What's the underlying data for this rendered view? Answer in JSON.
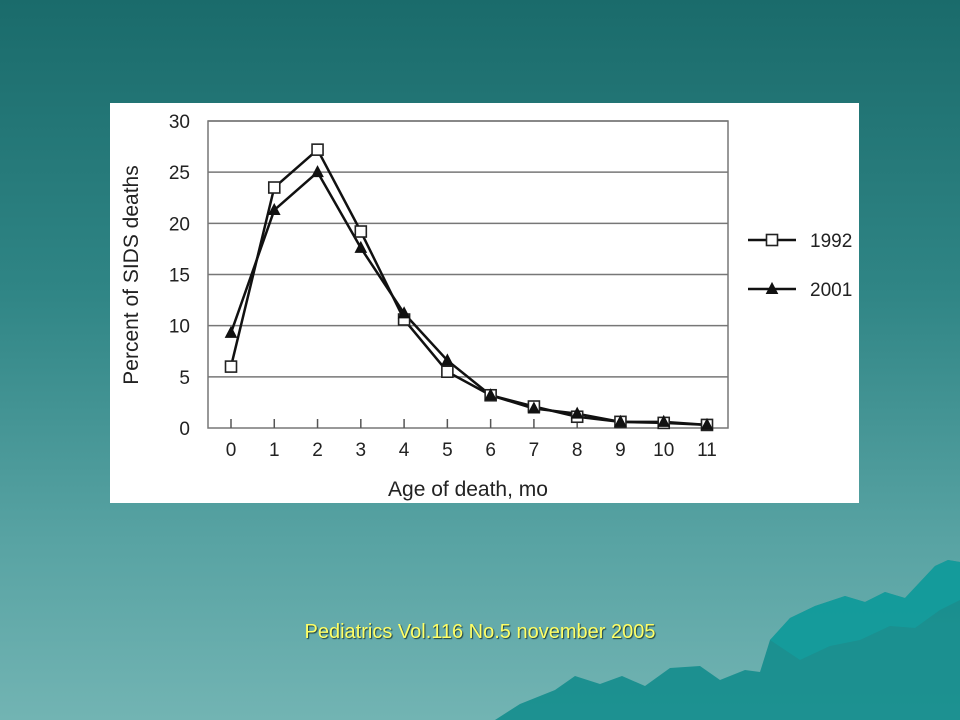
{
  "slide": {
    "citation": "Pediatrics Vol.116 No.5 november 2005",
    "colors": {
      "background_top": "#1a6b6b",
      "background_bottom": "#72b4b3",
      "citation_text": "#ffff66",
      "decoration_shape": "#0f8c8c"
    }
  },
  "chart_data": {
    "type": "line",
    "title": "",
    "xlabel": "Age of death, mo",
    "ylabel": "Percent of SIDS deaths",
    "categories": [
      "0",
      "1",
      "2",
      "3",
      "4",
      "5",
      "6",
      "7",
      "8",
      "9",
      "10",
      "11"
    ],
    "x": [
      0,
      1,
      2,
      3,
      4,
      5,
      6,
      7,
      8,
      9,
      10,
      11
    ],
    "ylim": [
      0,
      30
    ],
    "yticks": [
      "0",
      "5",
      "10",
      "15",
      "20",
      "25",
      "30"
    ],
    "grid": true,
    "legend_position": "right",
    "series": [
      {
        "name": "1992",
        "marker": "open-square",
        "values": [
          6.0,
          23.5,
          27.2,
          19.2,
          10.6,
          5.5,
          3.2,
          2.1,
          1.1,
          0.6,
          0.5,
          0.3
        ]
      },
      {
        "name": "2001",
        "marker": "filled-triangle",
        "values": [
          9.3,
          21.3,
          25.0,
          17.6,
          11.2,
          6.6,
          3.2,
          1.9,
          1.4,
          0.6,
          0.6,
          0.3
        ]
      }
    ]
  }
}
